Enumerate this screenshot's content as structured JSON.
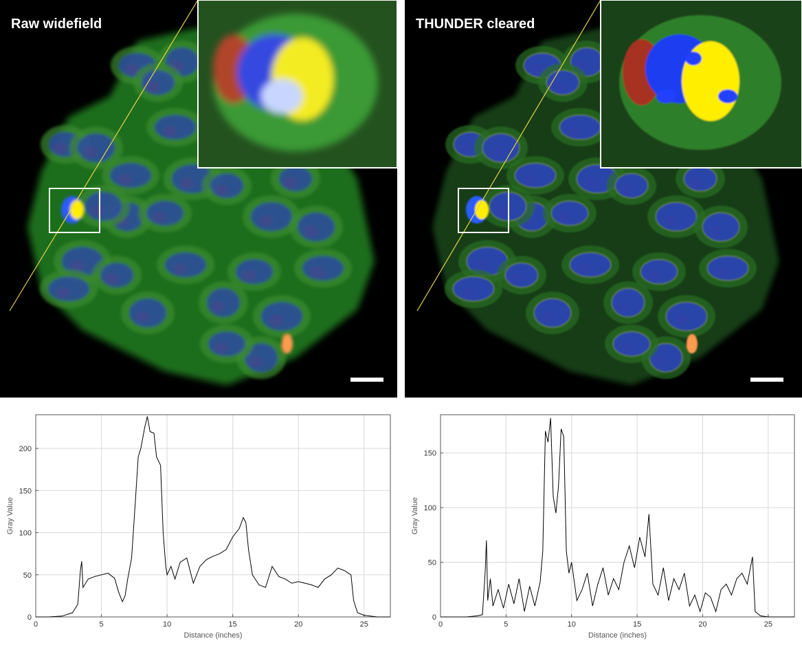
{
  "panels": {
    "left_title": "Raw widefield",
    "right_title": "THUNDER cleared"
  },
  "colors": {
    "actin": "#2fb82f",
    "nucleus": "#2b44b0",
    "marker": "#d0301a",
    "line_profile": "#e8d24a",
    "chromosome": "#1f3cf0",
    "spindle": "#ffee00"
  },
  "chart_data": [
    {
      "type": "line",
      "title": "",
      "xlabel": "Distance (inches)",
      "ylabel": "Gray Value",
      "xlim": [
        0,
        27
      ],
      "ylim": [
        0,
        240
      ],
      "xticks": [
        0,
        5,
        10,
        15,
        20,
        25
      ],
      "yticks": [
        0,
        50,
        100,
        150,
        200
      ],
      "grid": true,
      "x": [
        0,
        1,
        2,
        2.8,
        3.2,
        3.4,
        3.5,
        3.6,
        4,
        4.5,
        5,
        5.5,
        6,
        6.3,
        6.6,
        6.8,
        7,
        7.3,
        7.6,
        7.8,
        8,
        8.3,
        8.5,
        8.7,
        9,
        9.2,
        9.5,
        9.7,
        9.9,
        10,
        10.3,
        10.6,
        11,
        11.5,
        12,
        12.5,
        13,
        13.5,
        14,
        14.5,
        15,
        15.5,
        15.8,
        16,
        16.2,
        16.5,
        17,
        17.5,
        18,
        18.5,
        19,
        19.5,
        20,
        20.5,
        21,
        21.5,
        22,
        22.5,
        23,
        23.5,
        23.8,
        24,
        24.2,
        24.5,
        25,
        26,
        27
      ],
      "y": [
        0,
        0,
        1,
        5,
        15,
        55,
        66,
        35,
        45,
        48,
        50,
        52,
        46,
        30,
        18,
        25,
        45,
        70,
        140,
        190,
        200,
        225,
        238,
        220,
        218,
        190,
        180,
        100,
        60,
        50,
        60,
        45,
        65,
        70,
        40,
        60,
        68,
        72,
        75,
        80,
        95,
        105,
        118,
        112,
        80,
        50,
        38,
        35,
        60,
        48,
        45,
        40,
        42,
        40,
        38,
        35,
        45,
        50,
        58,
        55,
        52,
        50,
        20,
        5,
        2,
        0,
        0
      ]
    },
    {
      "type": "line",
      "title": "",
      "xlabel": "Distance (inches)",
      "ylabel": "Gray Value",
      "xlim": [
        0,
        27
      ],
      "ylim": [
        0,
        185
      ],
      "xticks": [
        0,
        5,
        10,
        15,
        20,
        25
      ],
      "yticks": [
        0,
        50,
        100,
        150
      ],
      "grid": true,
      "x": [
        0,
        1,
        2,
        2.8,
        3.2,
        3.4,
        3.5,
        3.6,
        3.8,
        4,
        4.4,
        4.8,
        5.2,
        5.6,
        6,
        6.4,
        6.8,
        7.2,
        7.6,
        7.8,
        8,
        8.2,
        8.4,
        8.6,
        8.8,
        9,
        9.2,
        9.4,
        9.6,
        9.8,
        10,
        10.4,
        10.8,
        11.2,
        11.6,
        12,
        12.4,
        12.8,
        13.2,
        13.6,
        14,
        14.4,
        14.8,
        15.2,
        15.6,
        15.9,
        16.2,
        16.6,
        17,
        17.4,
        17.8,
        18.2,
        18.6,
        19,
        19.4,
        19.8,
        20.2,
        20.6,
        21,
        21.4,
        21.8,
        22.2,
        22.6,
        23,
        23.4,
        23.8,
        24,
        24.4,
        25,
        26,
        27
      ],
      "y": [
        0,
        0,
        0,
        1,
        2,
        40,
        70,
        15,
        35,
        10,
        25,
        8,
        30,
        12,
        35,
        5,
        28,
        10,
        32,
        60,
        170,
        160,
        182,
        110,
        95,
        120,
        172,
        165,
        60,
        40,
        50,
        15,
        25,
        40,
        10,
        30,
        45,
        20,
        35,
        25,
        50,
        65,
        45,
        73,
        55,
        94,
        30,
        20,
        45,
        15,
        35,
        25,
        40,
        10,
        20,
        5,
        22,
        18,
        5,
        25,
        30,
        20,
        35,
        40,
        30,
        55,
        5,
        1,
        0,
        0,
        0
      ]
    }
  ]
}
